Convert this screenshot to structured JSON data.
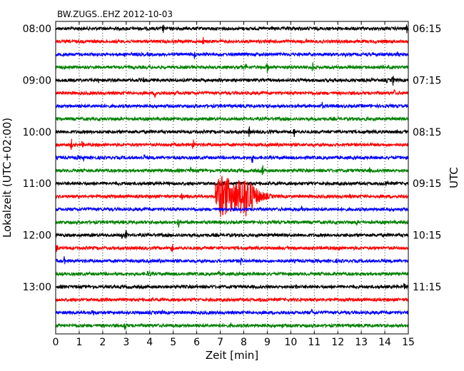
{
  "chart_data": {
    "type": "line",
    "title": "BW.ZUGS..EHZ 2012-10-03",
    "xlabel": "Zeit  [min]",
    "ylabel_left": "Lokalzeit (UTC+02:00)",
    "ylabel_right": "UTC",
    "xlim": [
      0,
      15
    ],
    "x_ticks": [
      "0",
      "1",
      "2",
      "3",
      "4",
      "5",
      "6",
      "7",
      "8",
      "9",
      "10",
      "11",
      "12",
      "13",
      "14",
      "15"
    ],
    "grid_x": "dotted",
    "minutes_per_trace": 15,
    "trace_count": 24,
    "trace_colors": [
      "#000000",
      "#ff0000",
      "#0000ff",
      "#008000"
    ],
    "left_tick_labels": [
      "08:00",
      "09:00",
      "10:00",
      "11:00",
      "12:00",
      "13:00"
    ],
    "right_tick_labels": [
      "06:15",
      "07:15",
      "08:15",
      "09:15",
      "10:15",
      "11:15"
    ],
    "event": {
      "trace_index": 13,
      "start_min": 6.8,
      "peak_min": 7.8,
      "end_min": 9.8,
      "description_visible": false
    }
  }
}
